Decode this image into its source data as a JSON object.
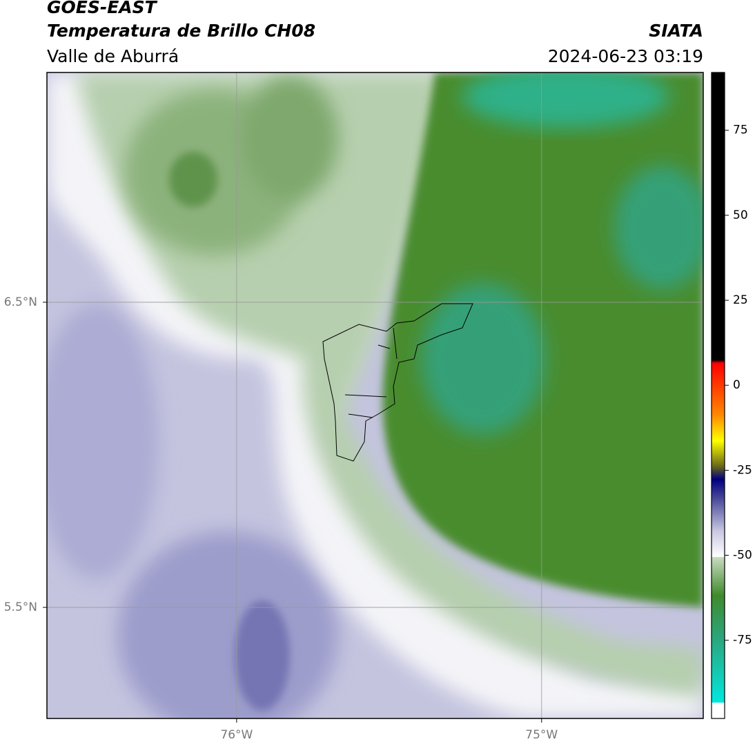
{
  "chart_data": {
    "type": "map",
    "title": "GOES-EAST",
    "subtitle": "Temperatura de Brillo CH08",
    "region": "Valle de Aburrá",
    "source": "SIATA",
    "datetime": "2024-06-23 03:19",
    "xlim": [
      -76.622,
      -74.47
    ],
    "ylim": [
      5.136,
      7.253
    ],
    "xticks": [
      {
        "value": -76,
        "label": "76°W"
      },
      {
        "value": -75,
        "label": "75°W"
      }
    ],
    "yticks": [
      {
        "value": 5.5,
        "label": "5.5°N"
      },
      {
        "value": 6.5,
        "label": "6.5°N"
      }
    ],
    "grid": true,
    "colorbar": {
      "lim": [
        -98,
        92
      ],
      "ticks": [
        -75,
        -50,
        -25,
        0,
        25,
        50,
        75
      ]
    }
  }
}
